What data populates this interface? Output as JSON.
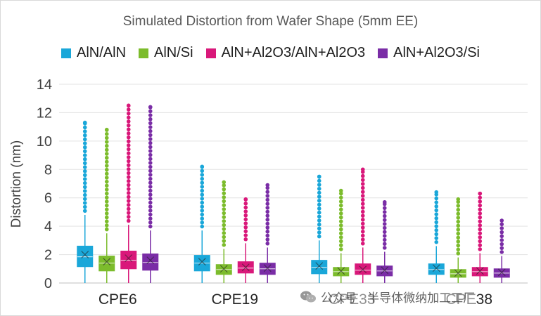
{
  "chart_data": {
    "type": "box",
    "title": "Simulated Distortion from Wafer Shape (5mm EE)",
    "xlabel": "",
    "ylabel": "Distortion (nm)",
    "ylim": [
      0,
      14
    ],
    "yticks": [
      0,
      2,
      4,
      6,
      8,
      10,
      12,
      14
    ],
    "categories": [
      "CPE6",
      "CPE19",
      "CPE33",
      "CPE38"
    ],
    "series": [
      {
        "name": "AlN/AlN",
        "color": "#1aa7d9",
        "boxes": [
          {
            "min": 0.0,
            "q1": 1.15,
            "median": 1.85,
            "mean": 2.0,
            "q3": 2.6,
            "whisker_high": 4.8,
            "outlier_max": 11.3
          },
          {
            "min": 0.0,
            "q1": 0.85,
            "median": 1.4,
            "mean": 1.5,
            "q3": 1.95,
            "whisker_high": 3.7,
            "outlier_max": 8.2
          },
          {
            "min": 0.0,
            "q1": 0.65,
            "median": 1.1,
            "mean": 1.2,
            "q3": 1.6,
            "whisker_high": 3.0,
            "outlier_max": 7.5
          },
          {
            "min": 0.0,
            "q1": 0.6,
            "median": 0.95,
            "mean": 1.05,
            "q3": 1.35,
            "whisker_high": 2.6,
            "outlier_max": 6.4
          }
        ]
      },
      {
        "name": "AlN/Si",
        "color": "#7cbc2c",
        "boxes": [
          {
            "min": 0.0,
            "q1": 0.85,
            "median": 1.4,
            "mean": 1.5,
            "q3": 1.9,
            "whisker_high": 3.5,
            "outlier_max": 10.8
          },
          {
            "min": 0.0,
            "q1": 0.6,
            "median": 0.95,
            "mean": 1.0,
            "q3": 1.3,
            "whisker_high": 2.4,
            "outlier_max": 7.1
          },
          {
            "min": 0.0,
            "q1": 0.5,
            "median": 0.8,
            "mean": 0.85,
            "q3": 1.1,
            "whisker_high": 2.1,
            "outlier_max": 6.5
          },
          {
            "min": 0.0,
            "q1": 0.4,
            "median": 0.65,
            "mean": 0.7,
            "q3": 0.95,
            "whisker_high": 1.8,
            "outlier_max": 5.9
          }
        ]
      },
      {
        "name": "AlN+Al2O3/AlN+Al2O3",
        "color": "#d9187a",
        "boxes": [
          {
            "min": 0.0,
            "q1": 1.0,
            "median": 1.6,
            "mean": 1.75,
            "q3": 2.25,
            "whisker_high": 4.1,
            "outlier_max": 12.5
          },
          {
            "min": 0.0,
            "q1": 0.7,
            "median": 1.05,
            "mean": 1.1,
            "q3": 1.5,
            "whisker_high": 2.8,
            "outlier_max": 5.9
          },
          {
            "min": 0.0,
            "q1": 0.6,
            "median": 0.9,
            "mean": 0.95,
            "q3": 1.35,
            "whisker_high": 2.5,
            "outlier_max": 8.0
          },
          {
            "min": 0.0,
            "q1": 0.5,
            "median": 0.8,
            "mean": 0.85,
            "q3": 1.1,
            "whisker_high": 2.1,
            "outlier_max": 6.3
          }
        ]
      },
      {
        "name": "AlN+Al2O3/Si",
        "color": "#7a2da6",
        "boxes": [
          {
            "min": 0.0,
            "q1": 0.9,
            "median": 1.45,
            "mean": 1.6,
            "q3": 2.05,
            "whisker_high": 3.7,
            "outlier_max": 12.4
          },
          {
            "min": 0.0,
            "q1": 0.6,
            "median": 1.0,
            "mean": 1.05,
            "q3": 1.4,
            "whisker_high": 2.5,
            "outlier_max": 6.9
          },
          {
            "min": 0.0,
            "q1": 0.5,
            "median": 0.85,
            "mean": 0.9,
            "q3": 1.2,
            "whisker_high": 2.2,
            "outlier_max": 5.7
          },
          {
            "min": 0.0,
            "q1": 0.4,
            "median": 0.7,
            "mean": 0.75,
            "q3": 1.0,
            "whisker_high": 1.9,
            "outlier_max": 4.4
          }
        ]
      }
    ],
    "grid": true,
    "legend_position": "top"
  },
  "watermark": {
    "text": "公众号 · 半导体微纳加工工厂",
    "icon": "wechat-icon"
  }
}
